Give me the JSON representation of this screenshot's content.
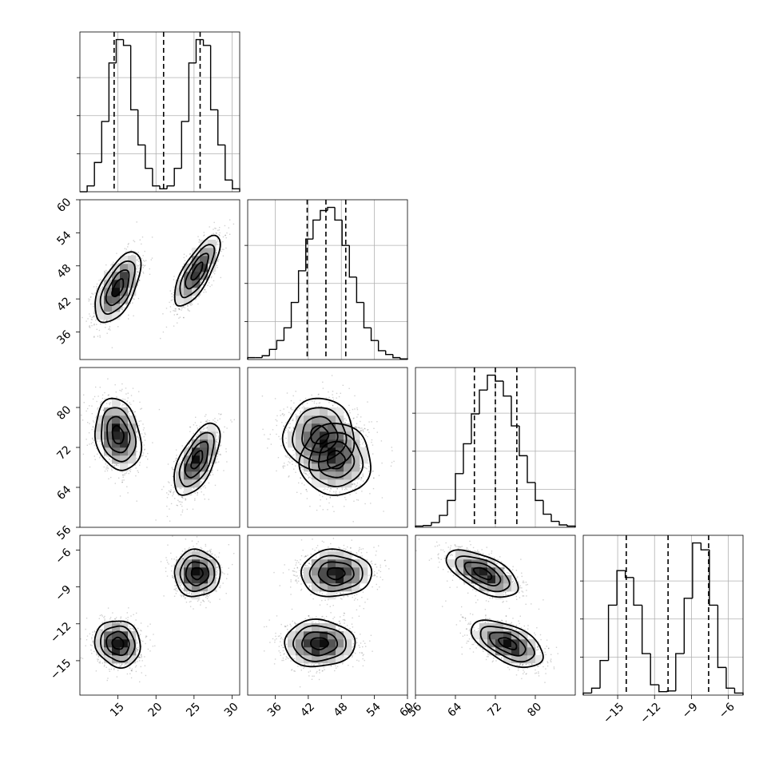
{
  "chart_data": {
    "type": "corner",
    "n_params": 4,
    "grid": true,
    "parameters": [
      {
        "index": 0,
        "range": [
          10,
          31
        ],
        "ticks": [
          15,
          20,
          25,
          30
        ]
      },
      {
        "index": 1,
        "range": [
          31,
          60
        ],
        "ticks": [
          36,
          42,
          48,
          54,
          60
        ]
      },
      {
        "index": 2,
        "range": [
          56,
          88
        ],
        "ticks": [
          56,
          64,
          72,
          80
        ]
      },
      {
        "index": 3,
        "range": [
          -17.8,
          -4.8
        ],
        "ticks": [
          -15,
          -12,
          -9,
          -6
        ]
      }
    ],
    "x_tick_labels": [
      [
        "15",
        "20",
        "25",
        "30"
      ],
      [
        "36",
        "42",
        "48",
        "54",
        "60"
      ],
      [
        "56",
        "64",
        "72",
        "80"
      ],
      [
        "−15",
        "−12",
        "−9",
        "−6"
      ]
    ],
    "y_tick_labels": {
      "1": [
        "36",
        "42",
        "48",
        "54",
        "60"
      ],
      "2": [
        "56",
        "64",
        "72",
        "80"
      ],
      "3": [
        "−15",
        "−12",
        "−9",
        "−6"
      ]
    },
    "quantiles": [
      [
        14.5,
        21.0,
        25.8
      ],
      [
        41.8,
        45.2,
        48.8
      ],
      [
        67.8,
        72.0,
        76.3
      ],
      [
        -14.3,
        -10.9,
        -7.6
      ]
    ],
    "histograms": [
      {
        "edges_start": 10,
        "edges_end": 31,
        "counts": [
          0,
          1,
          5,
          12,
          22,
          26,
          25,
          14,
          8,
          4,
          1,
          0.5,
          1,
          4,
          12,
          22,
          26,
          25,
          14,
          8,
          2,
          0.5
        ]
      },
      {
        "edges_start": 31,
        "edges_end": 60,
        "counts": [
          0.3,
          0.3,
          0.6,
          1.6,
          3,
          5,
          9,
          14,
          19,
          22,
          23.5,
          24,
          22,
          18,
          13,
          9,
          5,
          3,
          1.4,
          0.8,
          0.3,
          0.1
        ]
      },
      {
        "edges_start": 56,
        "edges_end": 88,
        "counts": [
          0.2,
          0.3,
          0.8,
          2,
          4.5,
          9,
          14,
          19,
          23,
          25.5,
          24.5,
          22,
          17,
          12,
          7.5,
          4.5,
          2.2,
          1,
          0.4,
          0.2
        ]
      },
      {
        "edges_start": -17.8,
        "edges_end": -4.8,
        "counts": [
          0.3,
          1,
          5,
          13,
          18,
          17,
          13,
          6,
          1.5,
          0.5,
          0.6,
          6,
          14,
          22,
          21,
          13,
          4,
          1,
          0.3
        ]
      }
    ],
    "modes": [
      {
        "weight": 0.5,
        "mean": [
          15,
          44,
          74.5,
          -13.6
        ],
        "sd": [
          1.5,
          3.2,
          3.6,
          0.95
        ],
        "corr": [
          [
            1,
            0.6,
            -0.2,
            -0.1
          ],
          [
            0.6,
            1,
            0,
            0
          ],
          [
            -0.2,
            0,
            1,
            -0.55
          ],
          [
            -0.1,
            0,
            -0.55,
            1
          ]
        ]
      },
      {
        "weight": 0.5,
        "mean": [
          25.4,
          47,
          69.5,
          -7.9
        ],
        "sd": [
          1.5,
          3.2,
          3.6,
          0.95
        ],
        "corr": [
          [
            1,
            0.75,
            0.6,
            0
          ],
          [
            0.75,
            1,
            0,
            0
          ],
          [
            0.6,
            0,
            1,
            -0.6
          ],
          [
            0,
            0,
            -0.6,
            1
          ]
        ]
      }
    ],
    "contour_levels_sigma": [
      0.5,
      1.0,
      1.5,
      2.0
    ],
    "colors": {
      "line": "#000000",
      "grid": "#b0b0b0",
      "scatter": "#000000"
    }
  }
}
